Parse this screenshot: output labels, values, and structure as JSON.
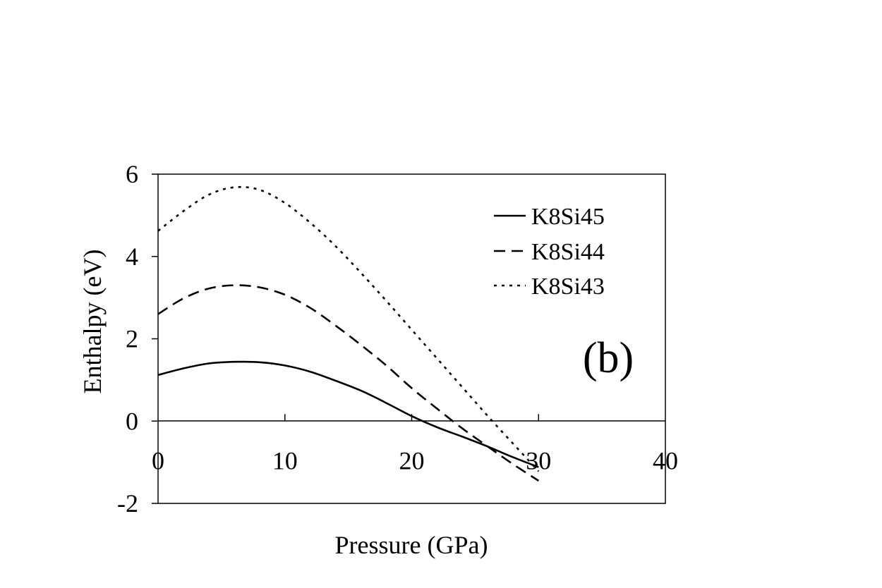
{
  "chart_data": {
    "type": "line",
    "xlabel": "Pressure (GPa)",
    "ylabel": "Enthalpy (eV)",
    "xlim": [
      0,
      40
    ],
    "ylim": [
      -2,
      6
    ],
    "x_ticks": [
      0,
      10,
      20,
      30,
      40
    ],
    "y_ticks": [
      -2,
      0,
      2,
      4,
      6
    ],
    "x_tick_labels": [
      "0",
      "10",
      "20",
      "30",
      "40"
    ],
    "y_tick_labels": [
      "-2",
      "0",
      "2",
      "4",
      "6"
    ],
    "grid": false,
    "legend_position": "top-right",
    "annotation": "(b)",
    "series": [
      {
        "name": "K8Si45",
        "style": "solid",
        "x": [
          0,
          2,
          4,
          6,
          8,
          10,
          12,
          14,
          16,
          18,
          20,
          22,
          24,
          26,
          28,
          30
        ],
        "y": [
          1.12,
          1.28,
          1.4,
          1.44,
          1.43,
          1.35,
          1.2,
          0.98,
          0.74,
          0.44,
          0.12,
          -0.15,
          -0.38,
          -0.62,
          -0.88,
          -1.12
        ]
      },
      {
        "name": "K8Si44",
        "style": "dashed",
        "x": [
          0,
          2,
          4,
          6,
          8,
          10,
          12,
          14,
          16,
          18,
          20,
          22,
          24,
          26,
          28,
          30
        ],
        "y": [
          2.6,
          2.98,
          3.22,
          3.3,
          3.25,
          3.07,
          2.75,
          2.32,
          1.85,
          1.35,
          0.8,
          0.3,
          -0.18,
          -0.62,
          -1.05,
          -1.45
        ]
      },
      {
        "name": "K8Si43",
        "style": "dotted",
        "x": [
          0,
          2,
          4,
          6,
          8,
          10,
          12,
          14,
          16,
          18,
          20,
          22,
          24,
          26,
          28,
          30
        ],
        "y": [
          4.62,
          5.1,
          5.5,
          5.68,
          5.62,
          5.3,
          4.82,
          4.25,
          3.6,
          2.92,
          2.22,
          1.52,
          0.82,
          0.12,
          -0.55,
          -1.22
        ]
      }
    ]
  },
  "colors": {
    "line": "#000000",
    "background": "#ffffff"
  }
}
